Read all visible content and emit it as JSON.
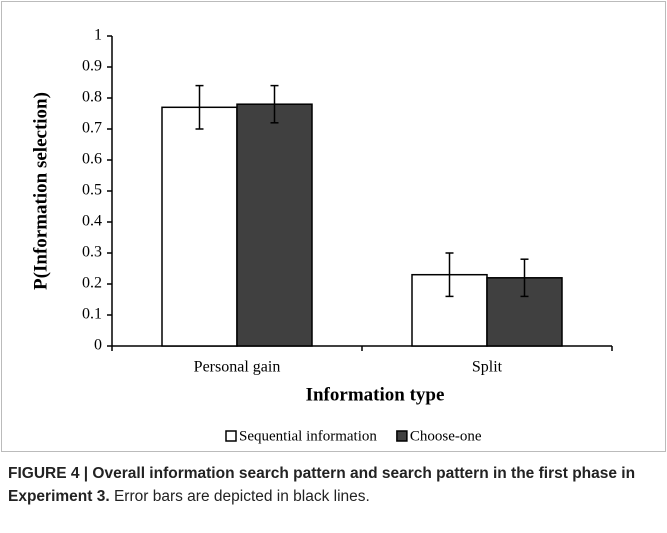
{
  "chart_data": {
    "type": "bar",
    "ylabel": "P(Information selection)",
    "xlabel": "Information type",
    "categories": [
      "Personal gain",
      "Split"
    ],
    "series": [
      {
        "name": "Sequential information",
        "color": "#ffffff",
        "values": [
          0.77,
          0.23
        ],
        "errors": [
          0.07,
          0.07
        ]
      },
      {
        "name": "Choose-one",
        "color": "#404040",
        "values": [
          0.78,
          0.22
        ],
        "errors": [
          0.06,
          0.06
        ]
      }
    ],
    "ylim": [
      0,
      1
    ],
    "yticks": [
      0,
      0.1,
      0.2,
      0.3,
      0.4,
      0.5,
      0.6,
      0.7,
      0.8,
      0.9,
      1
    ],
    "legend": "bottom"
  },
  "caption": {
    "label": "FIGURE 4 | Overall information search pattern and search pattern in the first phase in Experiment 3.",
    "text": "Error bars are depicted in black lines."
  }
}
